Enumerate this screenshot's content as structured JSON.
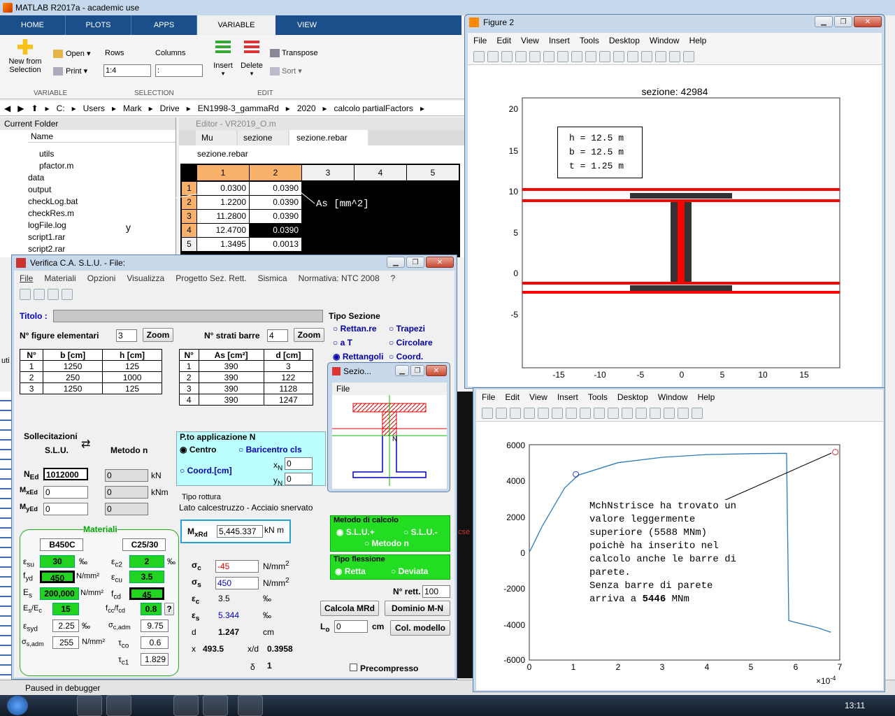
{
  "matlab": {
    "title": "MATLAB R2017a - academic use",
    "tabs": [
      "HOME",
      "PLOTS",
      "APPS",
      "VARIABLE",
      "VIEW"
    ],
    "new_from_selection": "New from Selection",
    "open": "Open",
    "print": "Print",
    "rows": "Rows",
    "columns": "Columns",
    "rows_value": "1:4",
    "columns_value": ":",
    "insert": "Insert",
    "delete": "Delete",
    "transpose": "Transpose",
    "sort": "Sort",
    "sec_variable": "VARIABLE",
    "sec_selection": "SELECTION",
    "sec_edit": "EDIT",
    "path": [
      "C:",
      "Users",
      "Mark",
      "Drive",
      "EN1998-3_gammaRd",
      "2020",
      "calcolo partialFactors"
    ],
    "current_folder": "Current Folder",
    "name_col": "Name",
    "files": [
      "utils",
      "pfactor.m",
      "data",
      "output",
      "checkLog.bat",
      "checkRes.m",
      "logFile.log",
      "script1.rar",
      "script2.rar"
    ],
    "editor_title": "Editor - VR2019_O.m",
    "editor_tabs": [
      "Mu",
      "sezione",
      "sezione.rebar"
    ],
    "var_name": "sezione.rebar",
    "col_headers": [
      "1",
      "2",
      "3",
      "4",
      "5"
    ],
    "row_headers": [
      "1",
      "2",
      "3",
      "4",
      "5"
    ],
    "grid": [
      [
        "0.0300",
        "0.0390"
      ],
      [
        "1.2200",
        "0.0390"
      ],
      [
        "11.2800",
        "0.0390"
      ],
      [
        "12.4700",
        "0.0390"
      ],
      [
        "1.3495",
        "0.0013"
      ]
    ],
    "annot_y": "y",
    "annot_as": "As [mm^2]",
    "status": "Paused in debugger",
    "left_stub": "uti",
    "cmd_stub": "cse"
  },
  "fig2": {
    "title": "Figure 2",
    "menu": [
      "File",
      "Edit",
      "View",
      "Insert",
      "Tools",
      "Desktop",
      "Window",
      "Help"
    ],
    "plot_title": "sezione: 42984",
    "box": [
      "h = 12.5 m",
      "b = 12.5 m",
      "t = 1.25 m"
    ],
    "yticks": [
      "20",
      "15",
      "10",
      "5",
      "0",
      "-5"
    ],
    "xticks": [
      "-15",
      "-10",
      "-5",
      "0",
      "5",
      "10",
      "15"
    ]
  },
  "fig3": {
    "menu": [
      "File",
      "Edit",
      "View",
      "Insert",
      "Tools",
      "Desktop",
      "Window",
      "Help"
    ],
    "yticks": [
      "6000",
      "4000",
      "2000",
      "0",
      "-2000",
      "-4000",
      "-6000"
    ],
    "xticks": [
      "0",
      "1",
      "2",
      "3",
      "4",
      "5",
      "6",
      "7"
    ],
    "xexp": "×10",
    "xexp_pow": "-4",
    "note": [
      "MchNstrisce ha trovato un",
      "valore leggermente",
      "superiore (5588 MNm)",
      "poichè ha inserito nel",
      "calcolo anche le barre di",
      "parete.",
      "Senza barre di parete"
    ],
    "note_last_pre": "arriva a ",
    "note_last_bold": "5446",
    "note_last_post": " MNm"
  },
  "chart_data": {
    "type": "line",
    "x": [
      0,
      0.3,
      0.8,
      1.1,
      2,
      3,
      4,
      5,
      5.8,
      5.85,
      6,
      6.5,
      6.8
    ],
    "y": [
      0,
      1500,
      3600,
      4300,
      5000,
      5300,
      5450,
      5500,
      5520,
      -3800,
      -3900,
      -4200,
      -4450
    ],
    "xlim": [
      0,
      7
    ],
    "ylim": [
      -6000,
      6000
    ],
    "points": [
      {
        "x": 1.05,
        "y": 4350
      },
      {
        "x": 6.9,
        "y": 5588
      }
    ]
  },
  "verifica": {
    "title": "Verifica C.A. S.L.U. - File:",
    "menu": [
      "File",
      "Materiali",
      "Opzioni",
      "Visualizza",
      "Progetto Sez. Rett.",
      "Sismica",
      "Normativa: NTC 2008",
      "?"
    ],
    "titolo": "Titolo :",
    "nfig_label": "N° figure elementari",
    "nfig": "3",
    "zoom": "Zoom",
    "nstrati_label": "N° strati barre",
    "nstrati": "4",
    "tipo_sezione": "Tipo Sezione",
    "tipi": [
      "Rettan.re",
      "Trapezi",
      "a T",
      "Circolare",
      "Rettangoli",
      "Coord."
    ],
    "t1_head": [
      "N°",
      "b [cm]",
      "h [cm]"
    ],
    "t1": [
      [
        "1",
        "1250",
        "125"
      ],
      [
        "2",
        "250",
        "1000"
      ],
      [
        "3",
        "1250",
        "125"
      ]
    ],
    "t2_head": [
      "N°",
      "As [cm²]",
      "d [cm]"
    ],
    "t2": [
      [
        "1",
        "390",
        "3"
      ],
      [
        "2",
        "390",
        "122"
      ],
      [
        "3",
        "390",
        "1128"
      ],
      [
        "4",
        "390",
        "1247"
      ]
    ],
    "sollecitazioni": "Sollecitazioni",
    "slu": "S.L.U.",
    "metodo_n": "Metodo n",
    "ned": "1012000",
    "z1": "0",
    "z2": "0",
    "z3": "0",
    "z4": "0",
    "z5": "0",
    "kn": "kN",
    "knm": "kNm",
    "ptoN": "P.to applicazione N",
    "centro": "Centro",
    "baricentro": "Baricentro cls",
    "coordcm": "Coord.[cm]",
    "xn": "0",
    "yn": "0",
    "tipo_rottura": "Tipo rottura",
    "rottura": "Lato calcestruzzo - Acciaio snervato",
    "mxrd": "5,445.337",
    "knm2": "kN m",
    "materiali": "Materiali",
    "steel": "B450C",
    "conc": "C25/30",
    "esu": "30",
    "fyd": "450",
    "es": "200,000",
    "eses": "15",
    "esyd": "2.25",
    "sadm": "255",
    "ec2": "2",
    "ecu": "3.5",
    "fcd": "45",
    "fccfcd": "0.8",
    "scadm": "9.75",
    "tco": "0.6",
    "tc1": "1.829",
    "permil": "‰",
    "nmm2": "N/mm²",
    "sigc": "-45",
    "sigs": "450",
    "epsc": "3.5",
    "epss": "5.344",
    "d": "1.247",
    "x": "493.5",
    "xd": "0.3958",
    "delta": "1",
    "cm": "cm",
    "nmm": "N/mm",
    "metodo_calcolo": "Metodo di calcolo",
    "mslu_p": "S.L.U.+",
    "mslu_m": "S.L.U.-",
    "mmetn": "Metodo n",
    "tipo_flessione": "Tipo flessione",
    "retta": "Retta",
    "deviata": "Deviata",
    "nrett_label": "N° rett.",
    "nrett": "100",
    "calcola": "Calcola MRd",
    "dominio": "Dominio M-N",
    "lo": "0",
    "colmodello": "Col. modello",
    "precompresso": "Precompresso",
    "q": "?"
  },
  "sezio": {
    "title": "Sezio...",
    "file": "File",
    "n": "N"
  },
  "taskbar": {
    "time": "13:11"
  }
}
